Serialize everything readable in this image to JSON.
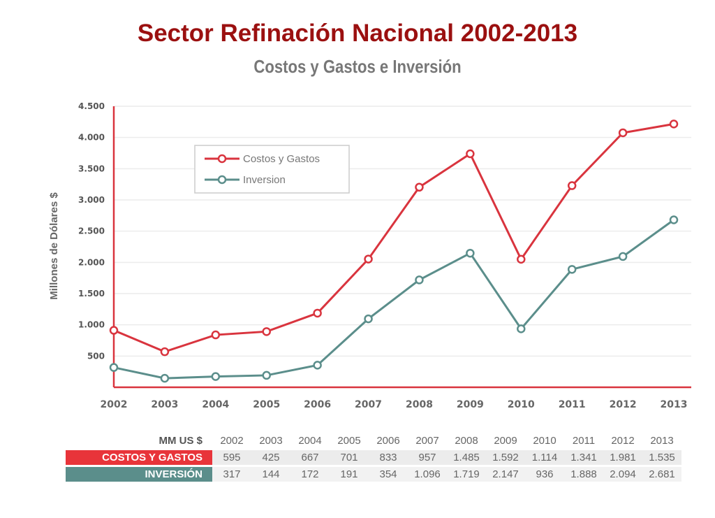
{
  "title": "Sector Refinación Nacional 2002-2013",
  "subtitle": "Costos y Gastos e Inversión",
  "chart_data": {
    "type": "line",
    "ylabel": "Millones de Dólares $",
    "xlabel": "",
    "ylim": [
      0,
      4500
    ],
    "yticks": [
      "500",
      "1.000",
      "1.500",
      "2.000",
      "2.500",
      "3.000",
      "3.500",
      "4.000",
      "4.500"
    ],
    "ytick_values": [
      500,
      1000,
      1500,
      2000,
      2500,
      3000,
      3500,
      4000,
      4500
    ],
    "x": [
      "2002",
      "2003",
      "2004",
      "2005",
      "2006",
      "2007",
      "2008",
      "2009",
      "2010",
      "2011",
      "2012",
      "2013"
    ],
    "grid": true,
    "legend_position": "top-left",
    "series": [
      {
        "name": "Costos y Gastos",
        "color": "#d9343e",
        "values": [
          912,
          569,
          839,
          892,
          1187,
          2053,
          3204,
          3739,
          2050,
          3229,
          4075,
          4216
        ]
      },
      {
        "name": "Inversion",
        "color": "#5b8e8b",
        "values": [
          317,
          144,
          172,
          191,
          354,
          1096,
          1719,
          2147,
          936,
          1888,
          2094,
          2681
        ]
      }
    ]
  },
  "table": {
    "header_label": "MM US $",
    "years": [
      "2002",
      "2003",
      "2004",
      "2005",
      "2006",
      "2007",
      "2008",
      "2009",
      "2010",
      "2011",
      "2012",
      "2013"
    ],
    "rows": [
      {
        "label": "COSTOS Y GASTOS",
        "values": [
          "595",
          "425",
          "667",
          "701",
          "833",
          "957",
          "1.485",
          "1.592",
          "1.114",
          "1.341",
          "1.981",
          "1.535"
        ]
      },
      {
        "label": "INVERSIÓN",
        "values": [
          "317",
          "144",
          "172",
          "191",
          "354",
          "1.096",
          "1.719",
          "2.147",
          "936",
          "1.888",
          "2.094",
          "2.681"
        ]
      }
    ]
  }
}
